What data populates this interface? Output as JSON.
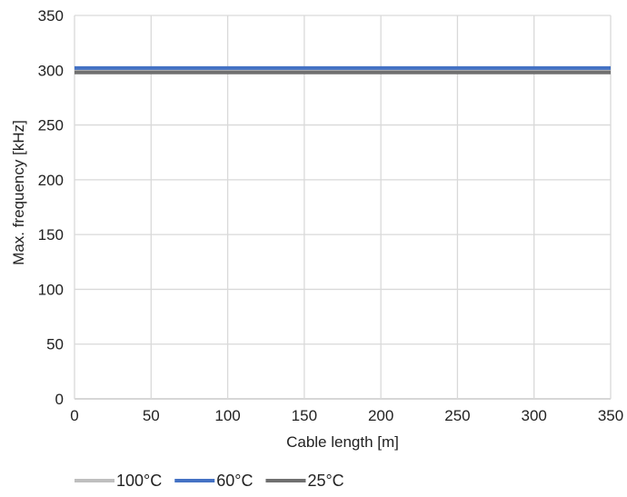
{
  "chart_data": {
    "type": "line",
    "xlabel": "Cable length [m]",
    "ylabel": "Max. frequency [kHz]",
    "xlim": [
      0,
      350
    ],
    "ylim": [
      0,
      350
    ],
    "x_ticks": [
      0,
      50,
      100,
      150,
      200,
      250,
      300,
      350
    ],
    "y_ticks": [
      0,
      50,
      100,
      150,
      200,
      250,
      300,
      350
    ],
    "x_tick_labels": [
      "0",
      "50",
      "100",
      "150",
      "200",
      "250",
      "300",
      "350"
    ],
    "y_tick_labels": [
      "0",
      "50",
      "100",
      "150",
      "200",
      "250",
      "300",
      "350"
    ],
    "grid": true,
    "legend_position": "bottom",
    "series": [
      {
        "name": "100°C",
        "color": "#bfbfbf",
        "x": [
          0,
          350
        ],
        "y": [
          300,
          300
        ]
      },
      {
        "name": "60°C",
        "color": "#4472c4",
        "x": [
          0,
          350
        ],
        "y": [
          302,
          302
        ]
      },
      {
        "name": "25°C",
        "color": "#707070",
        "x": [
          0,
          350
        ],
        "y": [
          298,
          298
        ]
      }
    ]
  },
  "colors": {
    "grid": "#d9d9d9",
    "axis": "#bfbfbf",
    "text": "#222222"
  }
}
